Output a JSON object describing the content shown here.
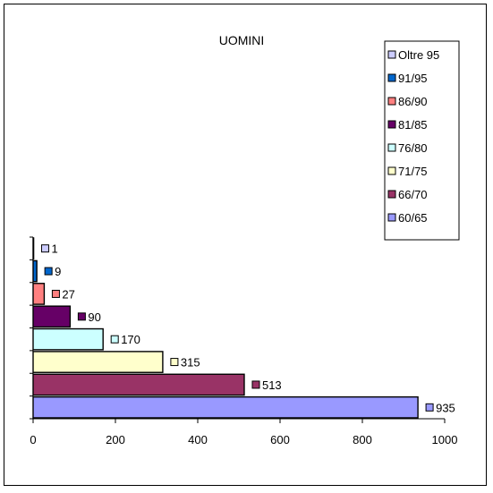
{
  "chart_data": {
    "type": "bar",
    "orientation": "horizontal",
    "title": "UOMINI",
    "categories": [
      "60/65",
      "66/70",
      "71/75",
      "76/80",
      "81/85",
      "86/90",
      "91/95",
      "Oltre 95"
    ],
    "values": [
      935,
      513,
      315,
      170,
      90,
      27,
      9,
      1
    ],
    "colors": [
      "#9999ff",
      "#993366",
      "#ffffcc",
      "#ccffff",
      "#660066",
      "#ff8080",
      "#0066cc",
      "#ccccff"
    ],
    "xlim": [
      0,
      1000
    ],
    "x_ticks": [
      "0",
      "200",
      "400",
      "600",
      "800",
      "1000"
    ],
    "data_labels": [
      "935",
      "513",
      "315",
      "170",
      "90",
      "27",
      "9",
      "1"
    ],
    "grid": false,
    "legend": {
      "placement": "top-right",
      "entries": [
        "Oltre 95",
        "91/95",
        "86/90",
        "81/85",
        "76/80",
        "71/75",
        "66/70",
        "60/65"
      ]
    }
  }
}
